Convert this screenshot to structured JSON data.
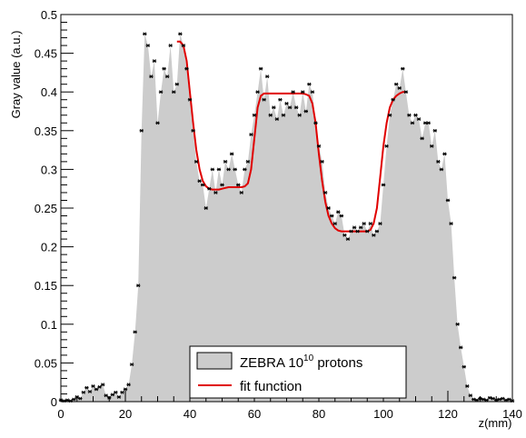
{
  "chart_data": {
    "type": "area",
    "title": "",
    "xlabel": "z(mm)",
    "ylabel": "Gray value (a.u.)",
    "xlim": [
      0,
      140
    ],
    "ylim": [
      0,
      0.5
    ],
    "x_ticks": [
      "0",
      "20",
      "40",
      "60",
      "80",
      "100",
      "120",
      "140"
    ],
    "y_ticks": [
      "0",
      "0.05",
      "0.1",
      "0.15",
      "0.2",
      "0.25",
      "0.3",
      "0.35",
      "0.4",
      "0.45",
      "0.5"
    ],
    "grid": false,
    "legend": {
      "placement": "bottom-center",
      "entries": [
        {
          "label_main": "ZEBRA 10",
          "label_sup": "10",
          "label_tail": " protons",
          "style": "filled-gray"
        },
        {
          "label": "fit function",
          "style": "red-line"
        }
      ]
    },
    "colors": {
      "fill": "#cccccc",
      "fit": "#e00000",
      "markers": "#000000"
    },
    "series": [
      {
        "name": "ZEBRA 10^10 protons",
        "x": [
          0,
          1,
          2,
          3,
          4,
          5,
          6,
          7,
          8,
          9,
          10,
          11,
          12,
          13,
          14,
          15,
          16,
          17,
          18,
          19,
          20,
          21,
          22,
          23,
          24,
          25,
          26,
          27,
          28,
          29,
          30,
          31,
          32,
          33,
          34,
          35,
          36,
          37,
          38,
          39,
          40,
          41,
          42,
          43,
          44,
          45,
          46,
          47,
          48,
          49,
          50,
          51,
          52,
          53,
          54,
          55,
          56,
          57,
          58,
          59,
          60,
          61,
          62,
          63,
          64,
          65,
          66,
          67,
          68,
          69,
          70,
          71,
          72,
          73,
          74,
          75,
          76,
          77,
          78,
          79,
          80,
          81,
          82,
          83,
          84,
          85,
          86,
          87,
          88,
          89,
          90,
          91,
          92,
          93,
          94,
          95,
          96,
          97,
          98,
          99,
          100,
          101,
          102,
          103,
          104,
          105,
          106,
          107,
          108,
          109,
          110,
          111,
          112,
          113,
          114,
          115,
          116,
          117,
          118,
          119,
          120,
          121,
          122,
          123,
          124,
          125,
          126,
          127,
          128,
          129,
          130,
          131,
          132,
          133,
          134,
          135,
          136,
          137,
          138,
          139,
          140
        ],
        "y": [
          0.002,
          0.001,
          0.002,
          0.001,
          0.003,
          0.006,
          0.004,
          0.012,
          0.018,
          0.013,
          0.02,
          0.016,
          0.019,
          0.022,
          0.008,
          0.005,
          0.009,
          0.012,
          0.006,
          0.012,
          0.016,
          0.022,
          0.048,
          0.09,
          0.15,
          0.35,
          0.475,
          0.46,
          0.42,
          0.44,
          0.36,
          0.4,
          0.43,
          0.42,
          0.46,
          0.4,
          0.41,
          0.475,
          0.46,
          0.43,
          0.39,
          0.35,
          0.31,
          0.285,
          0.28,
          0.25,
          0.275,
          0.3,
          0.27,
          0.3,
          0.28,
          0.31,
          0.3,
          0.32,
          0.3,
          0.28,
          0.27,
          0.3,
          0.31,
          0.345,
          0.37,
          0.4,
          0.43,
          0.39,
          0.42,
          0.37,
          0.38,
          0.365,
          0.39,
          0.37,
          0.385,
          0.38,
          0.4,
          0.38,
          0.37,
          0.4,
          0.375,
          0.41,
          0.4,
          0.36,
          0.33,
          0.31,
          0.27,
          0.25,
          0.24,
          0.23,
          0.245,
          0.24,
          0.215,
          0.21,
          0.22,
          0.225,
          0.22,
          0.225,
          0.23,
          0.22,
          0.23,
          0.215,
          0.22,
          0.23,
          0.28,
          0.33,
          0.37,
          0.39,
          0.41,
          0.405,
          0.43,
          0.4,
          0.37,
          0.36,
          0.37,
          0.365,
          0.34,
          0.36,
          0.36,
          0.33,
          0.35,
          0.31,
          0.3,
          0.32,
          0.26,
          0.23,
          0.16,
          0.1,
          0.07,
          0.045,
          0.02,
          0.008,
          0.003,
          0.002,
          0.004,
          0.003,
          0.002,
          0.005,
          0.004,
          0.002,
          0.003,
          0.004,
          0.002,
          0.003,
          0.001
        ]
      },
      {
        "name": "fit function",
        "x": [
          36,
          37,
          38,
          39,
          40,
          41,
          42,
          43,
          44,
          45,
          46,
          47,
          48,
          49,
          50,
          51,
          52,
          53,
          54,
          55,
          56,
          57,
          58,
          59,
          60,
          61,
          62,
          63,
          64,
          65,
          66,
          67,
          68,
          69,
          70,
          71,
          72,
          73,
          74,
          75,
          76,
          77,
          78,
          79,
          80,
          81,
          82,
          83,
          84,
          85,
          86,
          87,
          88,
          89,
          90,
          91,
          92,
          93,
          94,
          95,
          96,
          97,
          98,
          99,
          100,
          101,
          102,
          103,
          104,
          105,
          106,
          107
        ],
        "y": [
          0.465,
          0.465,
          0.46,
          0.44,
          0.4,
          0.36,
          0.325,
          0.3,
          0.285,
          0.278,
          0.275,
          0.274,
          0.274,
          0.274,
          0.275,
          0.276,
          0.277,
          0.277,
          0.277,
          0.277,
          0.277,
          0.278,
          0.282,
          0.3,
          0.34,
          0.38,
          0.395,
          0.398,
          0.398,
          0.398,
          0.398,
          0.398,
          0.398,
          0.398,
          0.398,
          0.398,
          0.398,
          0.398,
          0.398,
          0.398,
          0.397,
          0.395,
          0.385,
          0.36,
          0.32,
          0.285,
          0.258,
          0.24,
          0.23,
          0.224,
          0.221,
          0.22,
          0.22,
          0.22,
          0.22,
          0.22,
          0.22,
          0.22,
          0.22,
          0.22,
          0.222,
          0.23,
          0.25,
          0.29,
          0.33,
          0.36,
          0.38,
          0.39,
          0.395,
          0.398,
          0.4,
          0.4
        ]
      }
    ]
  }
}
